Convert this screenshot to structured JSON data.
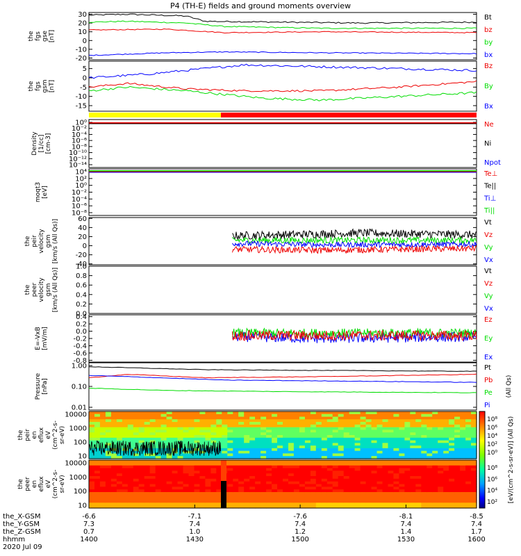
{
  "title": "P4 (TH-E) fields and ground moments overview",
  "colors": {
    "black": "#000000",
    "red": "#ee0000",
    "green": "#00dd00",
    "blue": "#0000ff",
    "yellow": "#ffff00",
    "bar_red": "#ff0000"
  },
  "panels": [
    {
      "id": "fgs-gse",
      "ylabel_lines": [
        "the",
        "fgs",
        "gse",
        "[nT]"
      ],
      "ylim": [
        -22,
        32
      ],
      "ticks": [
        "30",
        "20",
        "10",
        "0",
        "-10",
        "-20"
      ],
      "tick_values": [
        30,
        20,
        10,
        0,
        -10,
        -20
      ],
      "legend": [
        {
          "label": "Bt",
          "color": "black"
        },
        {
          "label": "bz",
          "color": "red"
        },
        {
          "label": "by",
          "color": "green"
        },
        {
          "label": "bx",
          "color": "blue"
        }
      ]
    },
    {
      "id": "fgs-gsm",
      "ylabel_lines": [
        "the",
        "fgs",
        "gsm",
        "[nT]"
      ],
      "ylim": [
        -18,
        9
      ],
      "ticks": [
        "5",
        "0",
        "-5",
        "-10",
        "-15"
      ],
      "tick_values": [
        5,
        0,
        -5,
        -10,
        -15
      ],
      "legend": [
        {
          "label": "Bz",
          "color": "red"
        },
        {
          "label": "By",
          "color": "green"
        },
        {
          "label": "Bx",
          "color": "blue"
        }
      ]
    },
    {
      "id": "density",
      "ylabel_lines": [
        "Density",
        "[1/cc]",
        "[cm-3]"
      ],
      "ticks": [
        "10⁰",
        "10⁻²",
        "10⁻⁴",
        "10⁻⁶",
        "10⁻⁸",
        "10⁻¹⁰",
        "10⁻¹²",
        "10⁻¹⁴"
      ],
      "legend": [
        {
          "label": "Ne",
          "color": "red"
        },
        {
          "label": "Ni",
          "color": "black"
        },
        {
          "label": "Npot",
          "color": "blue"
        }
      ]
    },
    {
      "id": "temperature",
      "ylabel_lines": [
        "moqt3",
        "[eV]"
      ],
      "ticks": [
        "10⁴",
        "10²",
        "10⁰",
        "10⁻²",
        "10⁻⁴",
        "10⁻⁶",
        "10⁻⁸"
      ],
      "legend": [
        {
          "label": "Te⊥",
          "color": "red"
        },
        {
          "label": "Te||",
          "color": "black"
        },
        {
          "label": "Ti⊥",
          "color": "blue"
        },
        {
          "label": "Ti||",
          "color": "green"
        }
      ]
    },
    {
      "id": "peir-velocity",
      "ylabel_lines": [
        "the",
        "peir",
        "velocity",
        "gsm",
        "[km/s (All Qs)]"
      ],
      "ylim": [
        -42,
        62
      ],
      "ticks": [
        "60",
        "40",
        "20",
        "0",
        "-20",
        "-40"
      ],
      "tick_values": [
        60,
        40,
        20,
        0,
        -20,
        -40
      ],
      "legend": [
        {
          "label": "Vt",
          "color": "black"
        },
        {
          "label": "Vz",
          "color": "red"
        },
        {
          "label": "Vy",
          "color": "green"
        },
        {
          "label": "Vx",
          "color": "blue"
        }
      ]
    },
    {
      "id": "peer-velocity",
      "ylabel_lines": [
        "the",
        "peer",
        "velocity",
        "gsm",
        "[km/s (All Qs)]"
      ],
      "ylim": [
        0,
        1
      ],
      "ticks": [
        "1.0",
        "0.8",
        "0.6",
        "0.4",
        "0.2",
        "0.0"
      ],
      "tick_values": [
        1.0,
        0.8,
        0.6,
        0.4,
        0.2,
        0.0
      ],
      "legend": [
        {
          "label": "Vt",
          "color": "black"
        },
        {
          "label": "Vz",
          "color": "red"
        },
        {
          "label": "Vy",
          "color": "green"
        },
        {
          "label": "Vx",
          "color": "blue"
        }
      ]
    },
    {
      "id": "efield",
      "ylabel_lines": [
        "E=-VxB",
        "[mV/m]"
      ],
      "ylim": [
        -0.85,
        0.45
      ],
      "ticks": [
        "0.4",
        "0.2",
        "0.0",
        "-0.2",
        "-0.4",
        "-0.6",
        "-0.8"
      ],
      "tick_values": [
        0.4,
        0.2,
        0.0,
        -0.2,
        -0.4,
        -0.6,
        -0.8
      ],
      "legend": [
        {
          "label": "Ez",
          "color": "red"
        },
        {
          "label": "Ey",
          "color": "green"
        },
        {
          "label": "Ex",
          "color": "blue"
        }
      ]
    },
    {
      "id": "pressure",
      "ylabel_lines": [
        "Pressure",
        "[nPa]"
      ],
      "ticks": [
        "1.00",
        "0.10",
        "0.01"
      ],
      "right_label": "(All Qs)",
      "legend": [
        {
          "label": "Pt",
          "color": "black"
        },
        {
          "label": "Pb",
          "color": "red"
        },
        {
          "label": "Pe",
          "color": "green"
        },
        {
          "label": "Pi",
          "color": "blue"
        }
      ]
    },
    {
      "id": "peir-eflux",
      "ylabel_lines": [
        "the",
        "peir",
        "en",
        "eflux",
        "eV",
        "(cm^2-s-",
        "sr-eV)"
      ],
      "ticks": [
        "10000",
        "1000",
        "100",
        "10"
      ],
      "colorbar_ticks": [
        "10⁸",
        "10⁶",
        "10⁴",
        "10²",
        "10⁰"
      ]
    },
    {
      "id": "peer-eflux",
      "ylabel_lines": [
        "the",
        "peer",
        "en",
        "eflux",
        "eV",
        "(cm^2-s-",
        "sr-eV)"
      ],
      "ticks": [
        "10000",
        "1000",
        "100",
        "10"
      ],
      "colorbar_ticks": [
        "10⁸",
        "10⁶",
        "10⁴",
        "10²"
      ]
    }
  ],
  "colorbar_label": "[eV/(cm^2-s-sr-eV)] (All Qs)",
  "x_axis": {
    "ticks": [
      "-6.6",
      "-7.1",
      "-7.6",
      "-8.1",
      "-8.5"
    ],
    "rows": [
      {
        "label": "the_Y-GSM",
        "values": [
          "7.3",
          "7.4",
          "7.4",
          "7.4",
          "7.4"
        ]
      },
      {
        "label": "the_Z-GSM",
        "values": [
          "0.7",
          "1.0",
          "1.2",
          "1.4",
          "1.7"
        ]
      },
      {
        "label": "hhmm",
        "values": [
          "1400",
          "1430",
          "1500",
          "1530",
          "1600"
        ]
      }
    ],
    "first_label": "the_X-GSM",
    "date": "2020 Jul 09"
  },
  "chart_data": {
    "type": "line",
    "title": "P4 (TH-E) fields and ground moments overview",
    "x": [
      "1400",
      "1430",
      "1500",
      "1530",
      "1600"
    ],
    "xlabel": "hhmm",
    "series": [
      {
        "name": "Bt",
        "values": [
          30,
          22,
          21,
          20,
          21
        ]
      },
      {
        "name": "bz",
        "values": [
          12,
          9,
          10,
          9,
          9
        ]
      },
      {
        "name": "by",
        "values": [
          22,
          16,
          14,
          14,
          14
        ]
      },
      {
        "name": "bx",
        "values": [
          -17,
          -13,
          -14,
          -15,
          -15
        ]
      },
      {
        "name": "Bz",
        "values": [
          -5,
          -7,
          -7,
          -6,
          -3
        ]
      },
      {
        "name": "By",
        "values": [
          -7,
          -10,
          -12,
          -10,
          -8
        ]
      },
      {
        "name": "Bx",
        "values": [
          0,
          4,
          6,
          5,
          4
        ]
      }
    ]
  }
}
